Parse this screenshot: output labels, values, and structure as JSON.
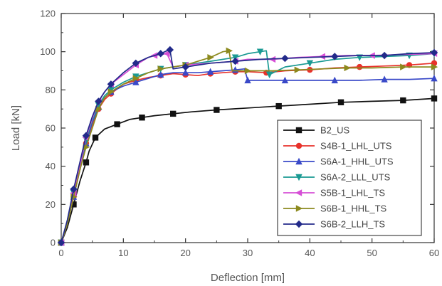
{
  "chart_data": {
    "type": "line",
    "xlabel": "Deflection [mm]",
    "ylabel": "Load [kN]",
    "xlim": [
      0,
      60
    ],
    "ylim": [
      0,
      120
    ],
    "xticks": [
      0,
      10,
      20,
      30,
      40,
      50,
      60
    ],
    "yticks": [
      0,
      20,
      40,
      60,
      80,
      100,
      120
    ],
    "grid": false,
    "legend_position": "lower-right",
    "series": [
      {
        "name": "B2_US",
        "color": "#111111",
        "marker": "square",
        "x": [
          0,
          1,
          2,
          3,
          4,
          4.5,
          5.5,
          7,
          9,
          11,
          13,
          15,
          18,
          21,
          25,
          30,
          35,
          40,
          45,
          50,
          55,
          60
        ],
        "y": [
          0,
          8,
          20,
          32,
          42,
          48,
          55,
          59.5,
          62,
          64.5,
          65.5,
          66.5,
          67.5,
          68.5,
          69.5,
          70.5,
          71.5,
          72.5,
          73.5,
          74,
          74.5,
          75.5
        ]
      },
      {
        "name": "S4B-1_LHL_UTS",
        "color": "#e8322b",
        "marker": "circle",
        "x": [
          0,
          1,
          2,
          3,
          4,
          5,
          6,
          7,
          8,
          10,
          12,
          14,
          16,
          18,
          20,
          22,
          24,
          26,
          28,
          30,
          33,
          36,
          40,
          44,
          48,
          52,
          56,
          60
        ],
        "y": [
          0,
          10,
          24,
          38,
          52,
          62,
          70,
          75,
          78,
          83,
          85,
          86.5,
          87.5,
          88.5,
          88,
          87.5,
          88.5,
          89,
          89.5,
          89.5,
          89,
          90,
          90.5,
          91.5,
          92,
          92.5,
          93,
          94
        ]
      },
      {
        "name": "S6A-1_HHL_UTS",
        "color": "#3949c8",
        "marker": "triangle-up",
        "x": [
          0,
          1,
          2,
          3,
          4,
          5,
          6,
          7,
          8,
          10,
          12,
          14,
          16,
          18,
          20,
          22,
          24,
          26,
          28,
          29.5,
          30,
          32,
          36,
          40,
          44,
          48,
          52,
          56,
          60
        ],
        "y": [
          0,
          10,
          24,
          38,
          52,
          63,
          71,
          76,
          79,
          82,
          84,
          86,
          88,
          89,
          89,
          89,
          89.5,
          90,
          90.5,
          91,
          85,
          85,
          85,
          85,
          85,
          85,
          85.5,
          85.5,
          86
        ]
      },
      {
        "name": "S6A-2_LLL_UTS",
        "color": "#1a9a93",
        "marker": "triangle-down",
        "x": [
          0,
          1,
          2,
          3,
          4,
          5,
          6,
          7,
          8,
          10,
          12,
          14,
          16,
          18,
          20,
          24,
          28,
          30,
          32,
          33,
          33.5,
          36,
          40,
          44,
          48,
          52,
          56,
          60
        ],
        "y": [
          0,
          10,
          26,
          40,
          54,
          64,
          72,
          77,
          80,
          84,
          87,
          89,
          91,
          92,
          93,
          95,
          97,
          99,
          100,
          100.5,
          88,
          92,
          94,
          96,
          97,
          97.5,
          98,
          99
        ]
      },
      {
        "name": "S5B-1_LHL_TS",
        "color": "#d64fd6",
        "marker": "triangle-left",
        "x": [
          0,
          1,
          2,
          3,
          4,
          5,
          6,
          7,
          8,
          10,
          12,
          14,
          15,
          16,
          17,
          18,
          20,
          24,
          28,
          30,
          34,
          38,
          42,
          46,
          50,
          55,
          60
        ],
        "y": [
          0,
          10,
          26,
          40,
          55,
          65,
          74,
          79,
          83,
          88,
          93,
          97,
          98,
          98.5,
          99,
          92,
          93,
          94,
          95,
          96,
          96,
          97,
          97.5,
          98,
          98,
          98.5,
          99
        ]
      },
      {
        "name": "S6B-1_HHL_TS",
        "color": "#8c8a1e",
        "marker": "triangle-right",
        "x": [
          0,
          1,
          2,
          3,
          4,
          5,
          6,
          7,
          8,
          10,
          12,
          14,
          16,
          18,
          20,
          22,
          24,
          26,
          27,
          27.5,
          30,
          34,
          38,
          42,
          46,
          50,
          55,
          60
        ],
        "y": [
          0,
          10,
          24,
          38,
          50,
          60,
          70,
          76,
          79,
          83,
          86,
          89,
          91,
          92,
          93,
          95,
          97,
          100,
          100.5,
          90,
          90,
          90,
          90.5,
          91,
          91.5,
          91.5,
          92,
          92
        ]
      },
      {
        "name": "S6B-2_LLH_TS",
        "color": "#222a8a",
        "marker": "diamond",
        "x": [
          0,
          1,
          2,
          3,
          4,
          5,
          6,
          7,
          8,
          10,
          12,
          14,
          16,
          17,
          17.5,
          18,
          20,
          24,
          28,
          32,
          36,
          40,
          44,
          48,
          52,
          56,
          60
        ],
        "y": [
          0,
          12,
          28,
          42,
          56,
          66,
          74,
          79,
          83,
          89,
          94,
          97,
          99,
          100.5,
          101,
          91,
          92,
          94,
          95,
          96,
          96.5,
          97,
          97.5,
          98,
          98,
          99,
          99.5
        ]
      }
    ]
  }
}
